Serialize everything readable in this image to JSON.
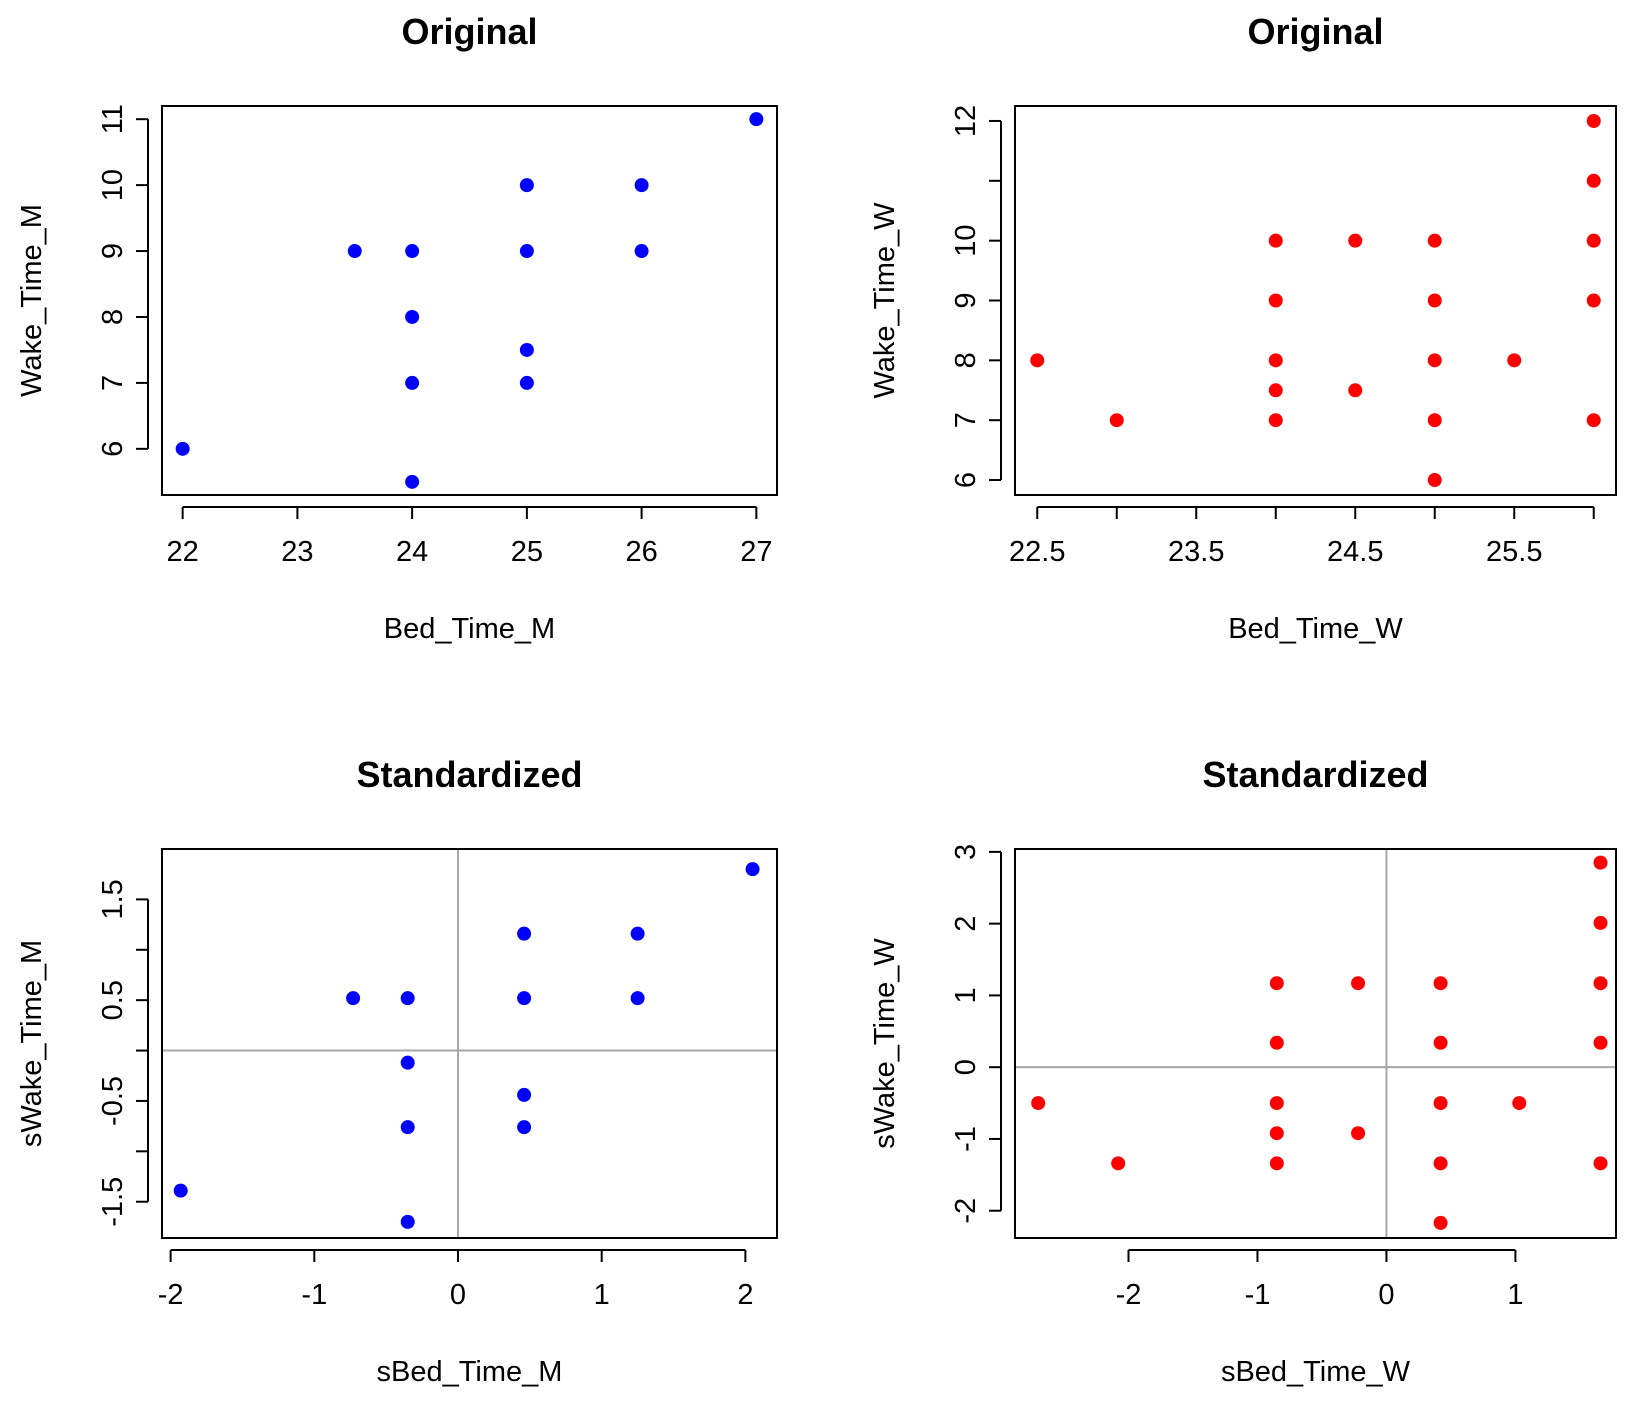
{
  "colors": {
    "men": "#0000ff",
    "women": "#ff0000",
    "reference_line": "#a6a6a6"
  },
  "chart_data": [
    {
      "type": "scatter",
      "title": "Original",
      "xlabel": "Bed_Time_M",
      "ylabel": "Wake_Time_M",
      "color": "#0000ff",
      "xlim": [
        21.82,
        27.18
      ],
      "ylim": [
        5.3,
        11.2
      ],
      "xticks": [
        22,
        23,
        24,
        25,
        26,
        27
      ],
      "xtick_labels": [
        "22",
        "23",
        "24",
        "25",
        "26",
        "27"
      ],
      "yticks": [
        6,
        7,
        8,
        9,
        10,
        11
      ],
      "ytick_labels": [
        "6",
        "7",
        "8",
        "9",
        "10",
        "11"
      ],
      "reference_lines": false,
      "x": [
        22,
        23.5,
        24,
        24,
        24,
        24,
        25,
        25,
        25,
        25,
        26,
        26,
        27
      ],
      "y": [
        6,
        9,
        9,
        8,
        7,
        5.5,
        10,
        9,
        7.5,
        7,
        10,
        9,
        11
      ]
    },
    {
      "type": "scatter",
      "title": "Original",
      "xlabel": "Bed_Time_W",
      "ylabel": "Wake_Time_W",
      "color": "#ff0000",
      "xlim": [
        22.36,
        26.14
      ],
      "ylim": [
        5.75,
        12.25
      ],
      "xticks": [
        22.5,
        23,
        23.5,
        24,
        24.5,
        25,
        25.5,
        26
      ],
      "xtick_labels": [
        "22.5",
        "",
        "23.5",
        "",
        "24.5",
        "",
        "25.5",
        ""
      ],
      "yticks": [
        6,
        7,
        8,
        9,
        10,
        11,
        12
      ],
      "ytick_labels": [
        "6",
        "7",
        "8",
        "9",
        "10",
        "",
        "12"
      ],
      "reference_lines": false,
      "x": [
        22.5,
        23,
        24,
        24,
        24,
        24,
        24,
        24.5,
        24.5,
        25,
        25,
        25,
        25,
        25,
        25.5,
        26,
        26,
        26,
        26,
        26
      ],
      "y": [
        8,
        7,
        10,
        9,
        8,
        7.5,
        7,
        10,
        7.5,
        10,
        9,
        8,
        7,
        6,
        8,
        12,
        11,
        10,
        9,
        7
      ]
    },
    {
      "type": "scatter",
      "title": "Standardized",
      "xlabel": "sBed_Time_M",
      "ylabel": "sWake_Time_M",
      "color": "#0000ff",
      "xlim": [
        -2.06,
        2.22
      ],
      "ylim": [
        -1.86,
        2.0
      ],
      "xticks": [
        -2,
        -1,
        0,
        1,
        2
      ],
      "xtick_labels": [
        "-2",
        "-1",
        "0",
        "1",
        "2"
      ],
      "yticks": [
        -1.5,
        -1,
        -0.5,
        0,
        0.5,
        1,
        1.5
      ],
      "ytick_labels": [
        "-1.5",
        "",
        "-0.5",
        "",
        "0.5",
        "",
        "1.5"
      ],
      "reference_lines": true,
      "x": [
        -1.93,
        -0.73,
        -0.35,
        -0.35,
        -0.35,
        -0.35,
        0.46,
        0.46,
        0.46,
        0.46,
        1.25,
        1.25,
        2.05
      ],
      "y": [
        -1.39,
        0.52,
        0.52,
        -0.12,
        -0.76,
        -1.7,
        1.16,
        0.52,
        -0.44,
        -0.76,
        1.16,
        0.52,
        1.8
      ]
    },
    {
      "type": "scatter",
      "title": "Standardized",
      "xlabel": "sBed_Time_W",
      "ylabel": "sWake_Time_W",
      "color": "#ff0000",
      "xlim": [
        -2.88,
        1.78
      ],
      "ylim": [
        -2.38,
        3.04
      ],
      "xticks": [
        -2,
        -1,
        0,
        1
      ],
      "xtick_labels": [
        "-2",
        "-1",
        "0",
        "1"
      ],
      "yticks": [
        -2,
        -1,
        0,
        1,
        2,
        3
      ],
      "ytick_labels": [
        "-2",
        "-1",
        "0",
        "1",
        "2",
        "3"
      ],
      "reference_lines": true,
      "x": [
        -2.7,
        -2.08,
        -0.85,
        -0.85,
        -0.85,
        -0.85,
        -0.85,
        -0.22,
        -0.22,
        0.42,
        0.42,
        0.42,
        0.42,
        0.42,
        1.03,
        1.66,
        1.66,
        1.66,
        1.66,
        1.66
      ],
      "y": [
        -0.5,
        -1.34,
        1.17,
        0.34,
        -0.5,
        -0.92,
        -1.34,
        1.17,
        -0.92,
        1.17,
        0.34,
        -0.5,
        -1.34,
        -2.17,
        -0.5,
        2.85,
        2.01,
        1.17,
        0.34,
        -1.34
      ]
    }
  ]
}
